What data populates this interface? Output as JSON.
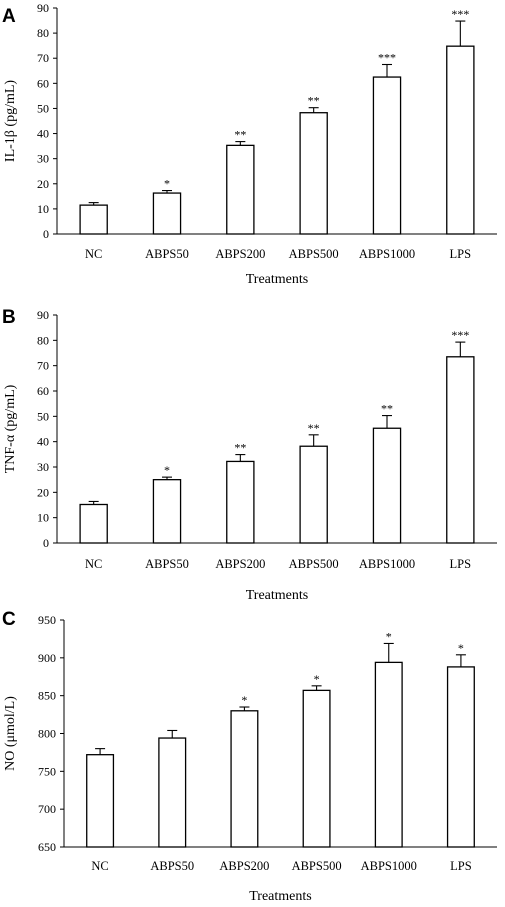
{
  "chart_data": [
    {
      "panel": "A",
      "type": "bar",
      "categories": [
        "NC",
        "ABPS50",
        "ABPS200",
        "ABPS500",
        "ABPS1000",
        "LPS"
      ],
      "values": [
        11.5,
        16.3,
        35.3,
        48.3,
        62.5,
        74.8
      ],
      "errors": [
        1.0,
        1.0,
        1.5,
        2.0,
        5.0,
        10.0
      ],
      "significance": [
        "",
        "*",
        "**",
        "**",
        "***",
        "***"
      ],
      "xlabel": "Treatments",
      "ylabel": "IL-1β (pg/mL)",
      "ylim": [
        0,
        90
      ],
      "yticks": [
        0,
        10,
        20,
        30,
        40,
        50,
        60,
        70,
        80,
        90
      ],
      "grid": false,
      "bar_color": "#ffffff",
      "edge_color": "#000000"
    },
    {
      "panel": "B",
      "type": "bar",
      "categories": [
        "NC",
        "ABPS50",
        "ABPS200",
        "ABPS500",
        "ABPS1000",
        "LPS"
      ],
      "values": [
        15.2,
        25.0,
        32.2,
        38.2,
        45.3,
        73.5
      ],
      "errors": [
        1.2,
        1.0,
        2.7,
        4.5,
        5.0,
        5.8
      ],
      "significance": [
        "",
        "*",
        "**",
        "**",
        "**",
        "***"
      ],
      "xlabel": "Treatments",
      "ylabel": "TNF-α (pg/mL)",
      "ylim": [
        0,
        90
      ],
      "yticks": [
        0,
        10,
        20,
        30,
        40,
        50,
        60,
        70,
        80,
        90
      ],
      "grid": false,
      "bar_color": "#ffffff",
      "edge_color": "#000000"
    },
    {
      "panel": "C",
      "type": "bar",
      "categories": [
        "NC",
        "ABPS50",
        "ABPS200",
        "ABPS500",
        "ABPS1000",
        "LPS"
      ],
      "values": [
        772,
        794,
        830,
        857,
        894,
        888
      ],
      "errors": [
        8,
        10,
        5,
        6,
        25,
        16
      ],
      "significance": [
        "",
        "",
        "*",
        "*",
        "*",
        "*"
      ],
      "xlabel": "Treatments",
      "ylabel": "NO (μmol/L)",
      "ylim": [
        650,
        950
      ],
      "yticks": [
        650,
        700,
        750,
        800,
        850,
        900,
        950
      ],
      "grid": false,
      "bar_color": "#ffffff",
      "edge_color": "#000000"
    }
  ]
}
